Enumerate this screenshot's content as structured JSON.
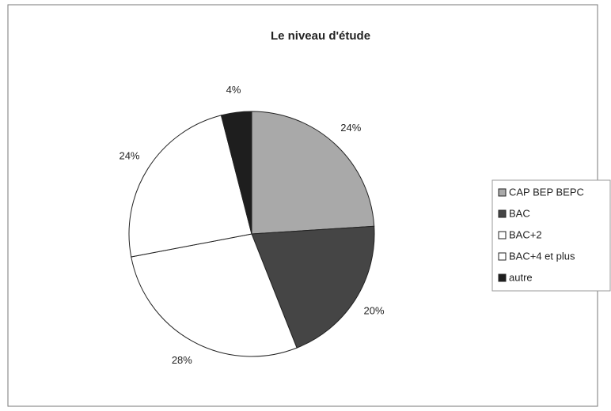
{
  "chart_data": {
    "type": "pie",
    "title": "Le niveau d'étude",
    "categories": [
      "CAP BEP BEPC",
      "BAC",
      "BAC+2",
      "BAC+4 et plus",
      "autre"
    ],
    "values": [
      24,
      20,
      28,
      24,
      4
    ],
    "value_labels": [
      "24%",
      "20%",
      "28%",
      "24%",
      "4%"
    ],
    "colors": [
      "#a9a9a9",
      "#454545",
      "#ffffff",
      "#ffffff",
      "#1e1e1e"
    ],
    "legend": "right"
  }
}
